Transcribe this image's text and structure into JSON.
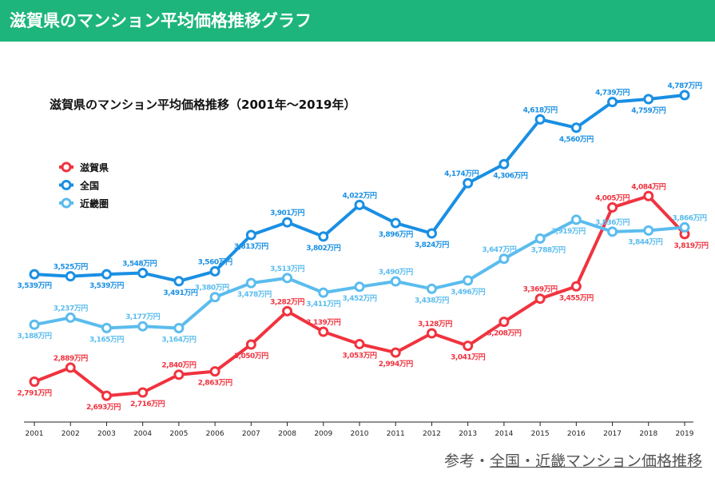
{
  "header": {
    "title": "滋賀県のマンション平均価格推移グラフ"
  },
  "chart_data": {
    "type": "line",
    "title": "滋賀県のマンション平均価格推移（2001年〜2019年）",
    "unit_suffix": "万円",
    "categories": [
      "2001",
      "2002",
      "2003",
      "2004",
      "2005",
      "2006",
      "2007",
      "2008",
      "2009",
      "2010",
      "2011",
      "2012",
      "2013",
      "2014",
      "2015",
      "2016",
      "2017",
      "2018",
      "2019"
    ],
    "ylim": [
      2510,
      4800
    ],
    "grid": false,
    "legend_position": "top-left",
    "series": [
      {
        "name": "滋賀県",
        "color": "#f0333f",
        "values": [
          2791,
          2889,
          2693,
          2716,
          2840,
          2863,
          3050,
          3282,
          3139,
          3053,
          2994,
          3128,
          3041,
          3208,
          3369,
          3455,
          4005,
          4084,
          3819
        ]
      },
      {
        "name": "全国",
        "color": "#1a8fe3",
        "values": [
          3539,
          3525,
          3539,
          3548,
          3491,
          3560,
          3813,
          3901,
          3802,
          4022,
          3896,
          3824,
          4174,
          4306,
          4618,
          4560,
          4739,
          4759,
          4787
        ]
      },
      {
        "name": "近畿圏",
        "color": "#5bbcee",
        "values": [
          3188,
          3237,
          3165,
          3177,
          3164,
          3380,
          3478,
          3513,
          3411,
          3452,
          3490,
          3438,
          3496,
          3647,
          3788,
          3919,
          3836,
          3844,
          3866
        ]
      }
    ]
  },
  "source": {
    "prefix": "参考・",
    "link": "全国・近畿マンション価格推移"
  }
}
